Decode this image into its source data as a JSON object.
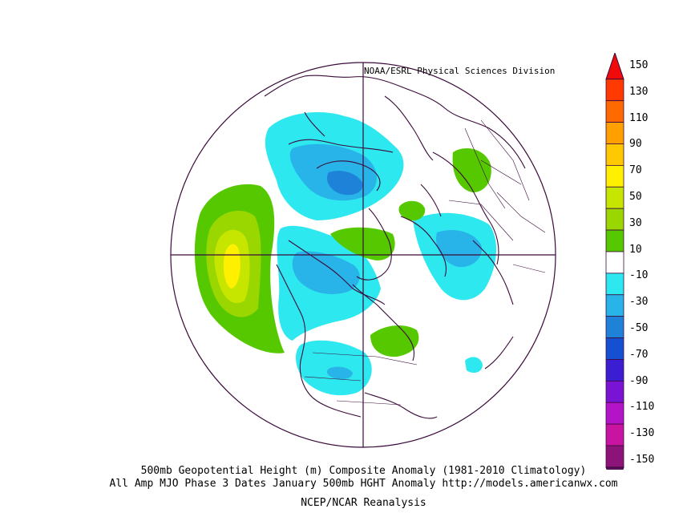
{
  "header": {
    "credit": "NOAA/ESRL Physical Sciences Division"
  },
  "captions": {
    "line1": "500mb Geopotential Height (m) Composite Anomaly (1981-2010 Climatology)",
    "line2": "All Amp MJO Phase 3 Dates January 500mb HGHT Anomaly http://models.americanwx.com",
    "line3": "NCEP/NCAR Reanalysis"
  },
  "colorbar": {
    "labels": [
      "150",
      "130",
      "110",
      "90",
      "70",
      "50",
      "30",
      "10",
      "-10",
      "-30",
      "-50",
      "-70",
      "-90",
      "-110",
      "-130",
      "-150"
    ],
    "colors": [
      "#f00a0a",
      "#ff3a00",
      "#ff6a00",
      "#ffa000",
      "#ffc800",
      "#fff000",
      "#c6e600",
      "#9ad600",
      "#56c800",
      "#ffffff",
      "#2ee8f0",
      "#28b4e8",
      "#1e82d8",
      "#1450d0",
      "#3c1ed2",
      "#7a14d4",
      "#b414c8",
      "#c814a0",
      "#8c1478",
      "#5a0f5a"
    ]
  }
}
